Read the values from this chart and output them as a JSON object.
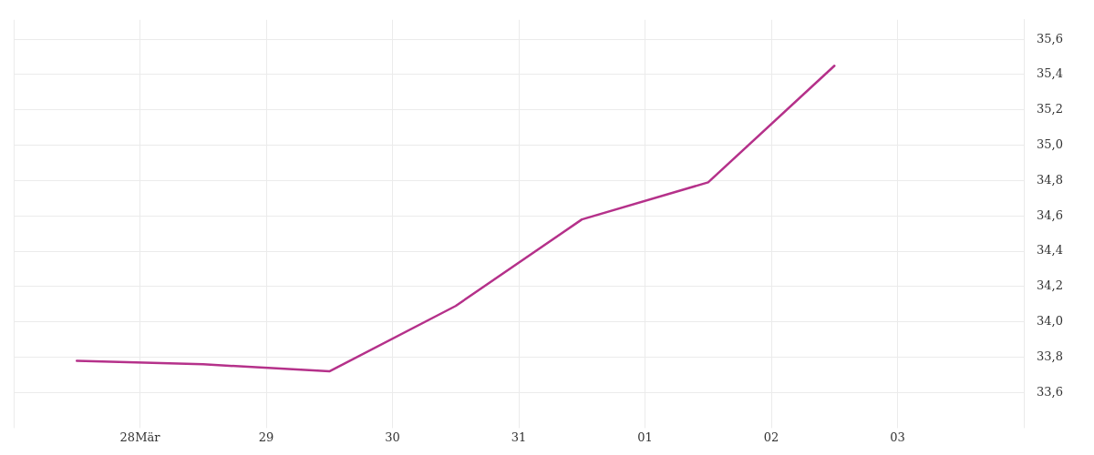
{
  "chart_data": {
    "type": "line",
    "x": [
      "--03-27T12:00",
      "--03-28T12:00",
      "--03-29T12:00",
      "--03-30T12:00",
      "--03-31T12:00",
      "--04-01T12:00",
      "--04-02T12:00"
    ],
    "series": [
      {
        "color": "#b5318a",
        "values": [
          33.78,
          33.76,
          33.72,
          34.09,
          34.58,
          34.79,
          35.45
        ]
      }
    ],
    "xlim": [
      "--03-27",
      "--04-04"
    ],
    "xticks": [
      {
        "value": "--03-28",
        "label": "28Mär"
      },
      {
        "value": "--03-29",
        "label": "29"
      },
      {
        "value": "--03-30",
        "label": "30"
      },
      {
        "value": "--03-31",
        "label": "31"
      },
      {
        "value": "--04-01",
        "label": "01"
      },
      {
        "value": "--04-02",
        "label": "02"
      },
      {
        "value": "--04-03",
        "label": "03"
      }
    ],
    "ylim": [
      33.44,
      35.71
    ],
    "yticks": [
      {
        "value": 33.6,
        "label": "33,6"
      },
      {
        "value": 33.8,
        "label": "33,8"
      },
      {
        "value": 34.0,
        "label": "34,0"
      },
      {
        "value": 34.2,
        "label": "34,2"
      },
      {
        "value": 34.4,
        "label": "34,4"
      },
      {
        "value": 34.6,
        "label": "34,6"
      },
      {
        "value": 34.8,
        "label": "34,8"
      },
      {
        "value": 35.0,
        "label": "35,0"
      },
      {
        "value": 35.2,
        "label": "35,2"
      },
      {
        "value": 35.4,
        "label": "35,4"
      },
      {
        "value": 35.6,
        "label": "35,6"
      }
    ],
    "grid": true,
    "legend": false,
    "marker": "none",
    "line_style": "solid"
  }
}
